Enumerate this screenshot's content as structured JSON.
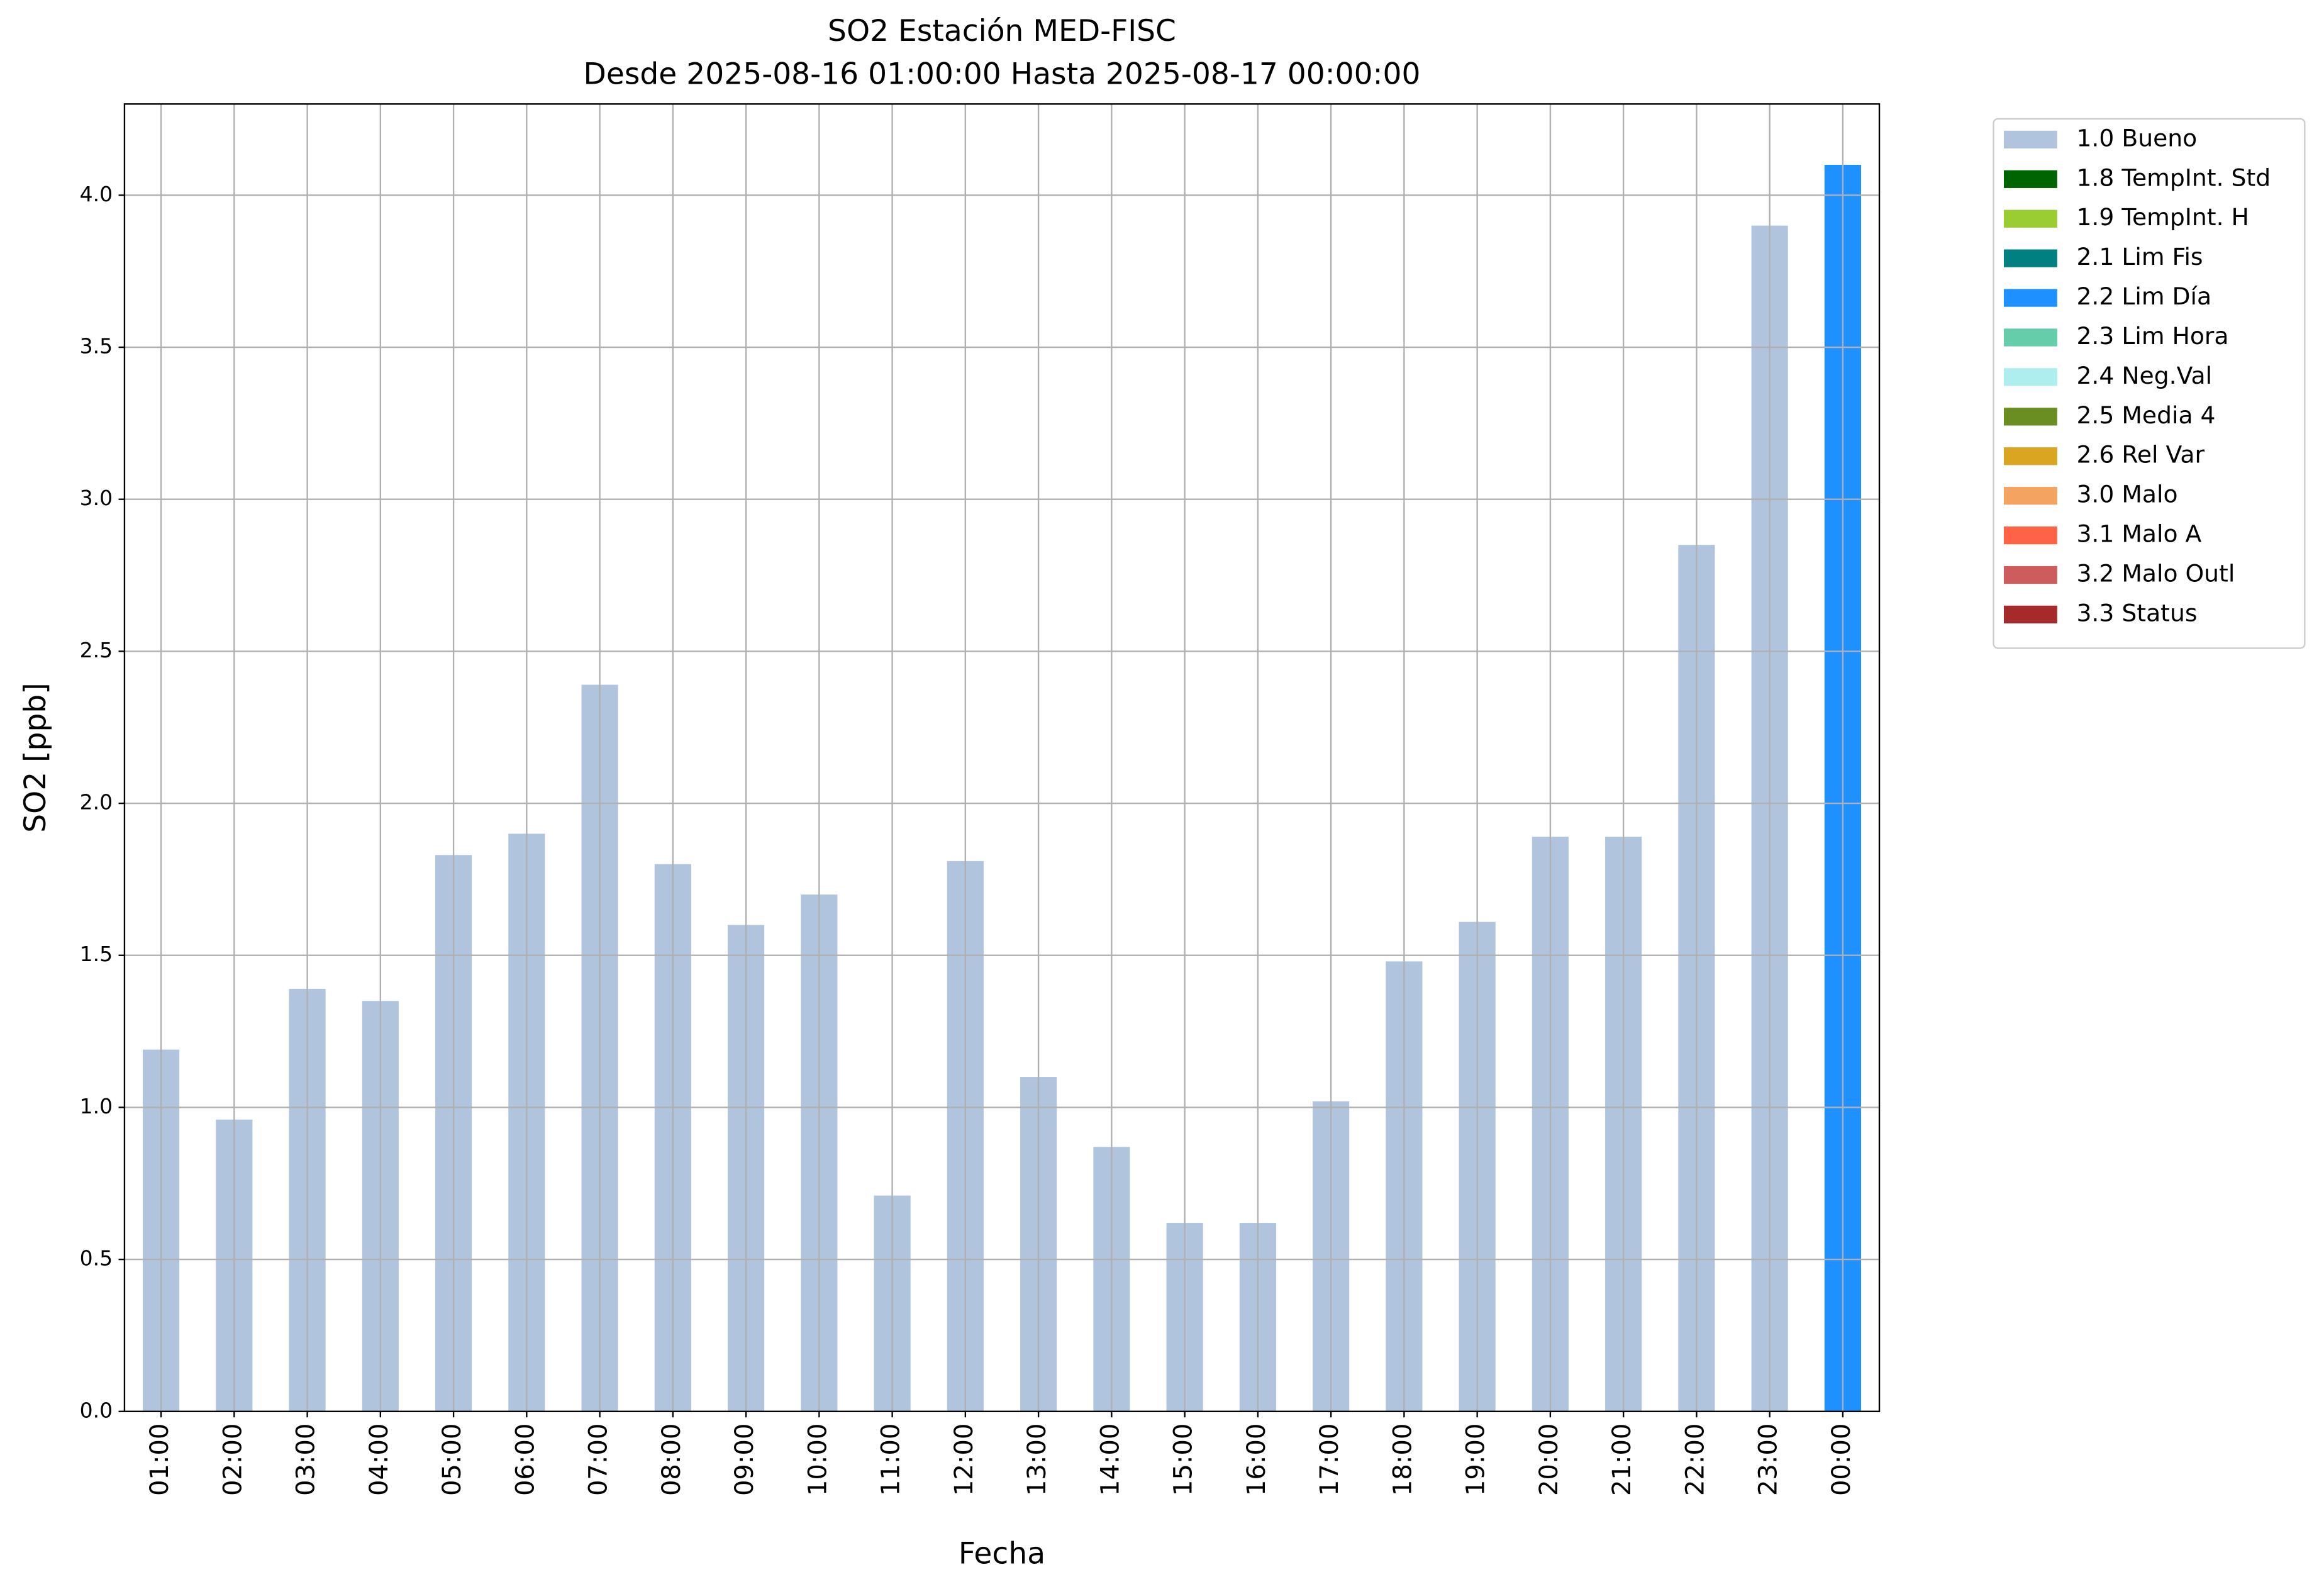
{
  "chart_data": {
    "type": "bar",
    "stacked": true,
    "title": "SO2 Estación MED-FISC",
    "subtitle": "Desde 2025-08-16 01:00:00 Hasta 2025-08-17 00:00:00",
    "x_label": "Fecha",
    "y_label": "SO2 [ppb]",
    "categories": [
      "01:00",
      "02:00",
      "03:00",
      "04:00",
      "05:00",
      "06:00",
      "07:00",
      "08:00",
      "09:00",
      "10:00",
      "11:00",
      "12:00",
      "13:00",
      "14:00",
      "15:00",
      "16:00",
      "17:00",
      "18:00",
      "19:00",
      "20:00",
      "21:00",
      "22:00",
      "23:00",
      "00:00"
    ],
    "series": [
      {
        "name": "1.0 Bueno",
        "color": "#b0c4de",
        "values": [
          1.19,
          0.96,
          1.39,
          1.35,
          1.83,
          1.9,
          2.39,
          1.8,
          1.6,
          1.7,
          0.71,
          1.81,
          1.1,
          0.87,
          0.62,
          0.62,
          1.02,
          1.48,
          1.61,
          1.89,
          1.89,
          2.85,
          3.9,
          null
        ]
      },
      {
        "name": "1.8 TempInt. Std",
        "color": "#006400",
        "values": [
          null,
          null,
          null,
          null,
          null,
          null,
          null,
          null,
          null,
          null,
          null,
          null,
          null,
          null,
          null,
          null,
          null,
          null,
          null,
          null,
          null,
          null,
          null,
          null
        ]
      },
      {
        "name": "1.9 TempInt. H",
        "color": "#9acd32",
        "values": [
          null,
          null,
          null,
          null,
          null,
          null,
          null,
          null,
          null,
          null,
          null,
          null,
          null,
          null,
          null,
          null,
          null,
          null,
          null,
          null,
          null,
          null,
          null,
          null
        ]
      },
      {
        "name": "2.1 Lim Fis",
        "color": "#008080",
        "values": [
          null,
          null,
          null,
          null,
          null,
          null,
          null,
          null,
          null,
          null,
          null,
          null,
          null,
          null,
          null,
          null,
          null,
          null,
          null,
          null,
          null,
          null,
          null,
          null
        ]
      },
      {
        "name": "2.2 Lim Día",
        "color": "#1e90ff",
        "values": [
          null,
          null,
          null,
          null,
          null,
          null,
          null,
          null,
          null,
          null,
          null,
          null,
          null,
          null,
          null,
          null,
          null,
          null,
          null,
          null,
          null,
          null,
          null,
          4.1
        ]
      },
      {
        "name": "2.3 Lim Hora",
        "color": "#66cdaa",
        "values": [
          null,
          null,
          null,
          null,
          null,
          null,
          null,
          null,
          null,
          null,
          null,
          null,
          null,
          null,
          null,
          null,
          null,
          null,
          null,
          null,
          null,
          null,
          null,
          null
        ]
      },
      {
        "name": "2.4 Neg.Val",
        "color": "#afeeee",
        "values": [
          null,
          null,
          null,
          null,
          null,
          null,
          null,
          null,
          null,
          null,
          null,
          null,
          null,
          null,
          null,
          null,
          null,
          null,
          null,
          null,
          null,
          null,
          null,
          null
        ]
      },
      {
        "name": "2.5 Media 4",
        "color": "#6b8e23",
        "values": [
          null,
          null,
          null,
          null,
          null,
          null,
          null,
          null,
          null,
          null,
          null,
          null,
          null,
          null,
          null,
          null,
          null,
          null,
          null,
          null,
          null,
          null,
          null,
          null
        ]
      },
      {
        "name": "2.6 Rel Var",
        "color": "#daa520",
        "values": [
          null,
          null,
          null,
          null,
          null,
          null,
          null,
          null,
          null,
          null,
          null,
          null,
          null,
          null,
          null,
          null,
          null,
          null,
          null,
          null,
          null,
          null,
          null,
          null
        ]
      },
      {
        "name": "3.0 Malo",
        "color": "#f4a460",
        "values": [
          null,
          null,
          null,
          null,
          null,
          null,
          null,
          null,
          null,
          null,
          null,
          null,
          null,
          null,
          null,
          null,
          null,
          null,
          null,
          null,
          null,
          null,
          null,
          null
        ]
      },
      {
        "name": "3.1 Malo A",
        "color": "#ff6347",
        "values": [
          null,
          null,
          null,
          null,
          null,
          null,
          null,
          null,
          null,
          null,
          null,
          null,
          null,
          null,
          null,
          null,
          null,
          null,
          null,
          null,
          null,
          null,
          null,
          null
        ]
      },
      {
        "name": "3.2 Malo Outl",
        "color": "#cd5c5c",
        "values": [
          null,
          null,
          null,
          null,
          null,
          null,
          null,
          null,
          null,
          null,
          null,
          null,
          null,
          null,
          null,
          null,
          null,
          null,
          null,
          null,
          null,
          null,
          null,
          null
        ]
      },
      {
        "name": "3.3 Status",
        "color": "#a52a2a",
        "values": [
          null,
          null,
          null,
          null,
          null,
          null,
          null,
          null,
          null,
          null,
          null,
          null,
          null,
          null,
          null,
          null,
          null,
          null,
          null,
          null,
          null,
          null,
          null,
          null
        ]
      }
    ],
    "ylim": [
      0,
      4.3
    ],
    "yticks": [
      {
        "value": 0,
        "label": "0.0"
      },
      0.5,
      {
        "value": 1,
        "label": "1.0"
      },
      1.5,
      {
        "value": 2,
        "label": "2.0"
      },
      2.5,
      {
        "value": 3,
        "label": "3.0"
      },
      3.5,
      {
        "value": 4,
        "label": "4.0"
      }
    ],
    "grid": true,
    "legend": "outside right"
  }
}
